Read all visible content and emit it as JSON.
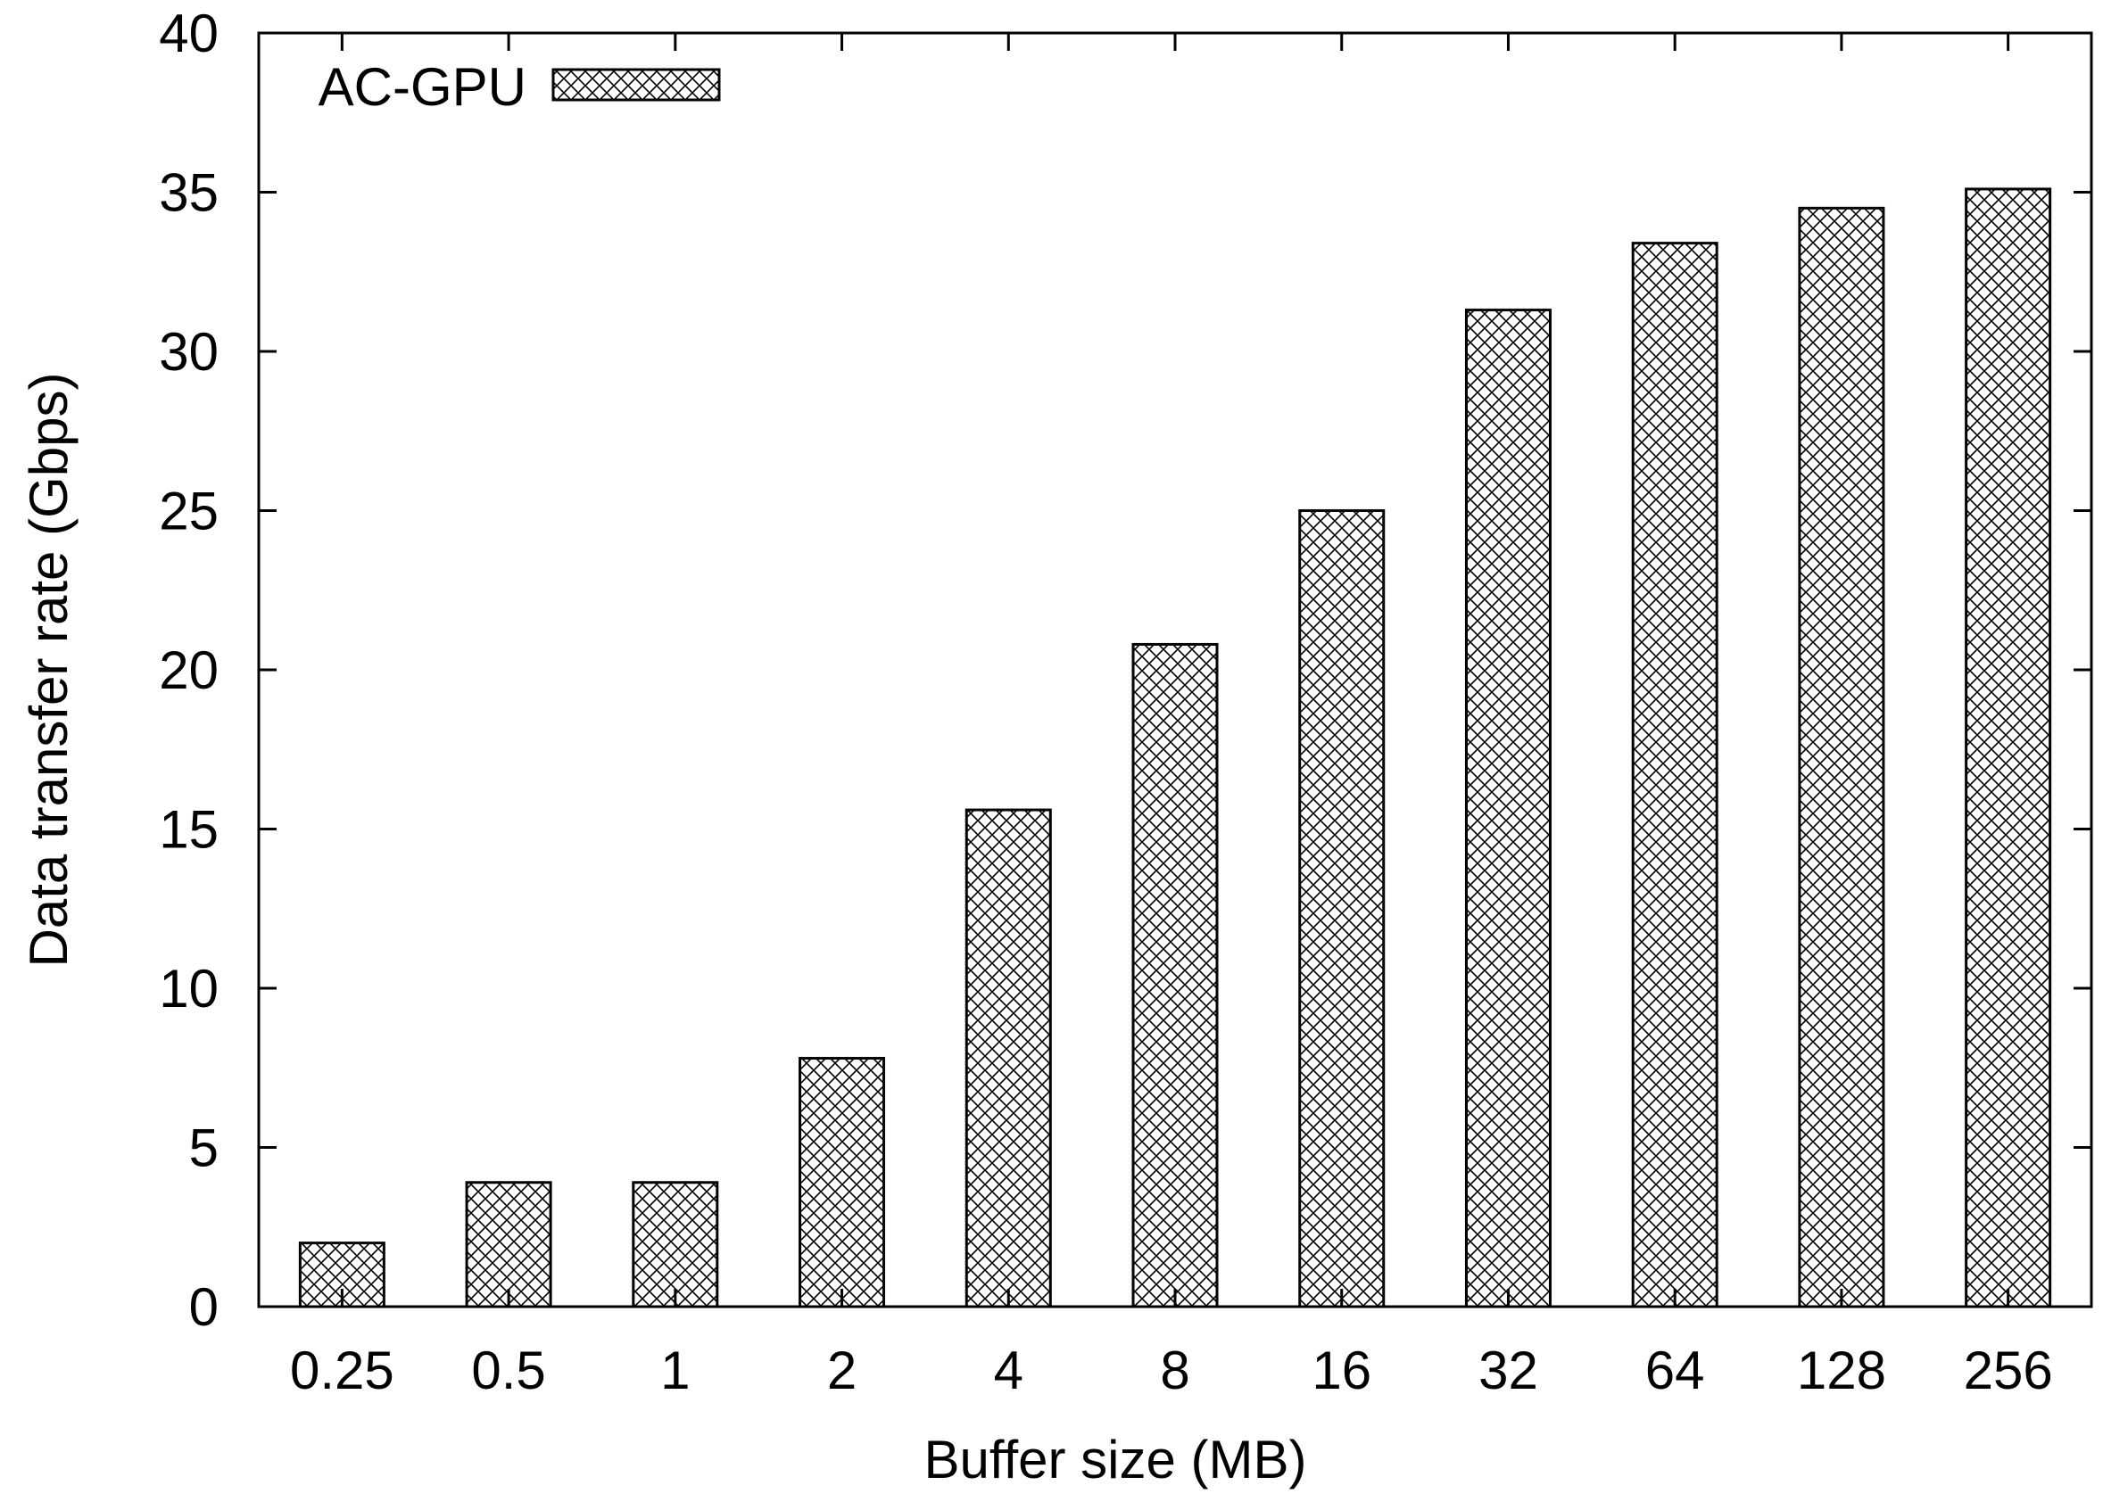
{
  "chart_data": {
    "type": "bar",
    "title": "",
    "xlabel": "Buffer size (MB)",
    "ylabel": "Data transfer rate (Gbps)",
    "categories": [
      "0.25",
      "0.5",
      "1",
      "2",
      "4",
      "8",
      "16",
      "32",
      "64",
      "128",
      "256"
    ],
    "series": [
      {
        "name": "AC-GPU",
        "values": [
          2.0,
          3.9,
          3.9,
          7.8,
          15.6,
          20.8,
          25.0,
          31.3,
          33.4,
          34.5,
          35.1
        ]
      }
    ],
    "ylim": [
      0,
      40
    ],
    "yticks": [
      "0",
      "5",
      "10",
      "15",
      "20",
      "25",
      "30",
      "35",
      "40"
    ],
    "grid": false,
    "legend_position": "top-left",
    "bar_fill": "crosshatch",
    "colors": {
      "bar_stroke": "#000000",
      "hatch": "#000000",
      "bar_background": "#ffffff"
    }
  }
}
